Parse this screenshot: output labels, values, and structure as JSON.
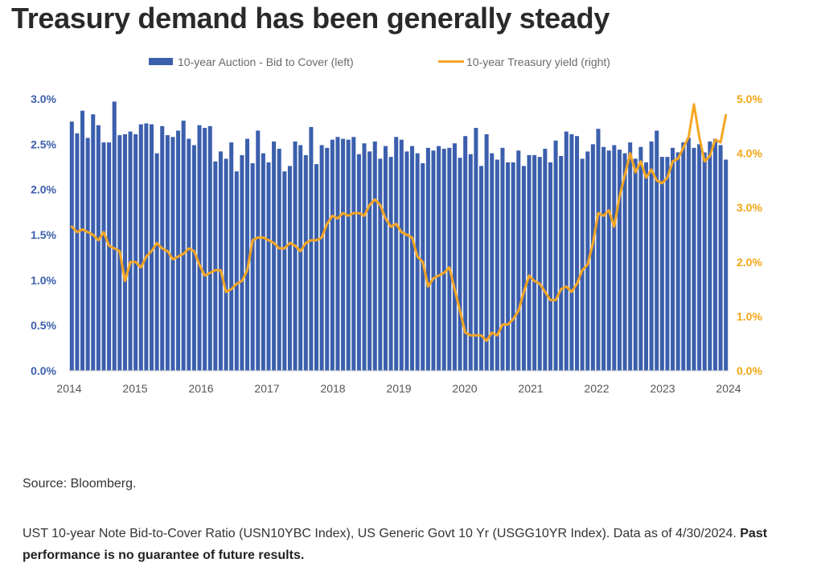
{
  "title": "Treasury demand has been generally steady",
  "source": "Source: Bloomberg.",
  "note": "UST 10-year Note Bid-to-Cover Ratio (USN10YBC Index), US Generic Govt 10 Yr (USGG10YR Index). Data as of 4/30/2024.",
  "disclaimer": "Past performance is no guarantee of future results.",
  "chart_data": {
    "type": "bar+line",
    "legend": [
      "10-year Auction - Bid to Cover (left)",
      "10-year Treasury yield (right)"
    ],
    "legend_position": "top",
    "colors": {
      "bars": "#3b5fad",
      "line": "#f5a623",
      "left_ticks": "#3b5fad",
      "right_ticks": "#f2a614"
    },
    "x_ticks": [
      "2014",
      "2015",
      "2016",
      "2017",
      "2018",
      "2019",
      "2020",
      "2021",
      "2022",
      "2023",
      "2024"
    ],
    "y_left_ticks": [
      "0.0%",
      "0.5%",
      "1.0%",
      "1.5%",
      "2.0%",
      "2.5%",
      "3.0%"
    ],
    "y_right_ticks": [
      "0.0%",
      "1.0%",
      "2.0%",
      "3.0%",
      "4.0%",
      "5.0%"
    ],
    "y_left_lim": [
      0,
      3.0
    ],
    "y_right_lim": [
      0,
      5.0
    ],
    "grid": false,
    "series": [
      {
        "name": "10-year Auction - Bid to Cover (left)",
        "kind": "bar",
        "axis": "left",
        "start": "2014-01",
        "frequency": "monthly",
        "values": [
          2.75,
          2.62,
          2.87,
          2.57,
          2.83,
          2.71,
          2.52,
          2.52,
          2.97,
          2.6,
          2.61,
          2.64,
          2.61,
          2.72,
          2.73,
          2.72,
          2.4,
          2.7,
          2.6,
          2.58,
          2.65,
          2.76,
          2.56,
          2.49,
          2.71,
          2.68,
          2.7,
          2.31,
          2.42,
          2.34,
          2.52,
          2.2,
          2.38,
          2.56,
          2.29,
          2.65,
          2.4,
          2.3,
          2.53,
          2.45,
          2.2,
          2.26,
          2.53,
          2.49,
          2.38,
          2.69,
          2.28,
          2.49,
          2.46,
          2.55,
          2.58,
          2.56,
          2.55,
          2.58,
          2.39,
          2.51,
          2.42,
          2.53,
          2.34,
          2.48,
          2.36,
          2.58,
          2.55,
          2.42,
          2.48,
          2.4,
          2.29,
          2.46,
          2.43,
          2.48,
          2.45,
          2.46,
          2.51,
          2.35,
          2.59,
          2.39,
          2.68,
          2.26,
          2.61,
          2.4,
          2.33,
          2.46,
          2.3,
          2.3,
          2.43,
          2.26,
          2.38,
          2.38,
          2.36,
          2.45,
          2.3,
          2.54,
          2.37,
          2.64,
          2.61,
          2.59,
          2.34,
          2.42,
          2.5,
          2.67,
          2.47,
          2.43,
          2.49,
          2.44,
          2.4,
          2.52,
          2.34,
          2.47,
          2.3,
          2.53,
          2.65,
          2.36,
          2.36,
          2.46,
          2.41,
          2.52,
          2.57,
          2.46,
          2.5,
          2.41,
          2.53,
          2.56,
          2.49,
          2.33
        ]
      },
      {
        "name": "10-year Treasury yield (right)",
        "kind": "line",
        "axis": "right",
        "start": "2014-01",
        "frequency": "monthly",
        "values": [
          2.65,
          2.55,
          2.6,
          2.55,
          2.5,
          2.4,
          2.55,
          2.3,
          2.25,
          2.2,
          1.65,
          2.0,
          2.0,
          1.9,
          2.1,
          2.2,
          2.35,
          2.25,
          2.2,
          2.05,
          2.1,
          2.15,
          2.25,
          2.2,
          1.95,
          1.75,
          1.8,
          1.85,
          1.85,
          1.45,
          1.5,
          1.6,
          1.65,
          1.85,
          2.4,
          2.45,
          2.45,
          2.4,
          2.35,
          2.25,
          2.25,
          2.35,
          2.3,
          2.2,
          2.35,
          2.4,
          2.4,
          2.45,
          2.7,
          2.85,
          2.8,
          2.9,
          2.85,
          2.9,
          2.9,
          2.85,
          3.05,
          3.15,
          3.05,
          2.8,
          2.65,
          2.7,
          2.55,
          2.5,
          2.45,
          2.1,
          2.0,
          1.55,
          1.7,
          1.75,
          1.8,
          1.9,
          1.5,
          1.1,
          0.7,
          0.65,
          0.65,
          0.65,
          0.55,
          0.7,
          0.65,
          0.85,
          0.85,
          0.95,
          1.1,
          1.45,
          1.75,
          1.65,
          1.6,
          1.45,
          1.3,
          1.3,
          1.5,
          1.55,
          1.45,
          1.6,
          1.85,
          1.95,
          2.35,
          2.9,
          2.85,
          2.95,
          2.65,
          3.2,
          3.6,
          4.0,
          3.65,
          3.85,
          3.55,
          3.7,
          3.5,
          3.45,
          3.55,
          3.85,
          3.9,
          4.1,
          4.3,
          4.9,
          4.3,
          3.85,
          3.95,
          4.25,
          4.2,
          4.7
        ]
      }
    ]
  }
}
